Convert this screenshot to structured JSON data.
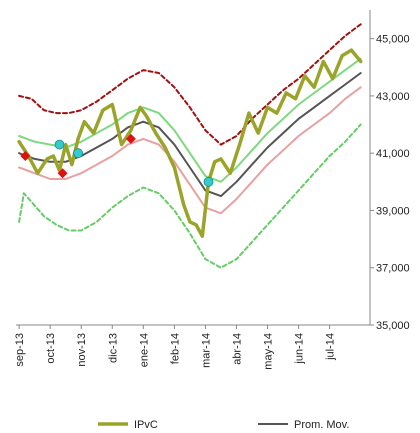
{
  "chart_data": {
    "type": "line",
    "title": "",
    "xlabel": "",
    "ylabel": "",
    "ylim": [
      35000,
      46000
    ],
    "y_ticks": [
      35000,
      37000,
      39000,
      41000,
      43000,
      45000
    ],
    "y_tick_labels": [
      "35,000",
      "37,000",
      "39,000",
      "41,000",
      "43,000",
      "45,000"
    ],
    "y_axis_side": "right",
    "grid": false,
    "legend_position": "bottom",
    "x_tick_labels": [
      "sep-13",
      "oct-13",
      "nov-13",
      "dic-13",
      "ene-14",
      "feb-14",
      "mar-14",
      "abr-14",
      "may-14",
      "jun-14",
      "jul-14"
    ],
    "x_tick_months": [
      0,
      1,
      2,
      3,
      4,
      5,
      6,
      7,
      8,
      9,
      10
    ],
    "x_range_months": [
      -0.1,
      11.3
    ],
    "series": [
      {
        "name": "IPvC",
        "legend": true,
        "color": "#9aa42a",
        "style": "solid-thick",
        "x": [
          0,
          0.3,
          0.6,
          0.9,
          1.1,
          1.3,
          1.5,
          1.7,
          1.9,
          2.1,
          2.4,
          2.7,
          3.0,
          3.3,
          3.6,
          3.9,
          4.1,
          4.4,
          4.7,
          5.0,
          5.3,
          5.5,
          5.7,
          5.9,
          6.1,
          6.3,
          6.5,
          6.8,
          7.1,
          7.4,
          7.7,
          8.0,
          8.3,
          8.6,
          8.9,
          9.2,
          9.5,
          9.8,
          10.1,
          10.4,
          10.7,
          11.0
        ],
        "values": [
          41400,
          40900,
          40300,
          40800,
          40900,
          40400,
          41300,
          40600,
          41500,
          42100,
          41700,
          42500,
          42700,
          41300,
          41800,
          42600,
          42300,
          41700,
          41200,
          40500,
          39200,
          38600,
          38500,
          38100,
          40000,
          40700,
          40800,
          40300,
          41300,
          42400,
          41700,
          42600,
          42400,
          43100,
          42900,
          43700,
          43300,
          44200,
          43600,
          44400,
          44600,
          44200
        ]
      },
      {
        "name": "Prom. Mov.",
        "legend": true,
        "color": "#555555",
        "style": "solid",
        "x": [
          0,
          0.5,
          1.0,
          1.5,
          2.0,
          2.5,
          3.0,
          3.5,
          4.0,
          4.5,
          5.0,
          5.5,
          6.0,
          6.5,
          7.0,
          7.5,
          8.0,
          8.5,
          9.0,
          9.5,
          10.0,
          10.5,
          11.0
        ],
        "values": [
          41000,
          40800,
          40700,
          40700,
          40900,
          41200,
          41500,
          41900,
          42100,
          41900,
          41300,
          40500,
          39700,
          39500,
          40000,
          40600,
          41200,
          41700,
          42200,
          42600,
          43000,
          43400,
          43800
        ]
      },
      {
        "legend": false,
        "color": "#7fd97f",
        "style": "solid",
        "x": [
          0,
          0.5,
          1.0,
          1.5,
          2.0,
          2.5,
          3.0,
          3.5,
          4.0,
          4.5,
          5.0,
          5.5,
          6.0,
          6.5,
          7.0,
          7.5,
          8.0,
          8.5,
          9.0,
          9.5,
          10.0,
          10.5,
          11.0
        ],
        "values": [
          41600,
          41400,
          41300,
          41200,
          41400,
          41700,
          42000,
          42400,
          42600,
          42400,
          41800,
          41000,
          40200,
          40000,
          40500,
          41100,
          41700,
          42200,
          42700,
          43100,
          43500,
          43900,
          44300
        ]
      },
      {
        "legend": false,
        "color": "#e8a0a0",
        "style": "solid",
        "x": [
          0,
          0.5,
          1.0,
          1.5,
          2.0,
          2.5,
          3.0,
          3.5,
          4.0,
          4.5,
          5.0,
          5.5,
          6.0,
          6.5,
          7.0,
          7.5,
          8.0,
          8.5,
          9.0,
          9.5,
          10.0,
          10.5,
          11.0
        ],
        "values": [
          40500,
          40300,
          40100,
          40100,
          40300,
          40600,
          40900,
          41300,
          41500,
          41300,
          40700,
          39900,
          39100,
          38900,
          39400,
          40000,
          40600,
          41100,
          41600,
          42000,
          42400,
          42900,
          43300
        ]
      },
      {
        "legend": false,
        "color": "#a01010",
        "style": "dashed",
        "x": [
          0,
          0.4,
          0.8,
          1.2,
          1.6,
          2.0,
          2.5,
          3.0,
          3.5,
          4.0,
          4.5,
          5.0,
          5.5,
          6.0,
          6.5,
          7.0,
          7.5,
          8.0,
          8.5,
          9.0,
          9.5,
          10.0,
          10.5,
          11.0
        ],
        "values": [
          43000,
          42900,
          42500,
          42400,
          42400,
          42500,
          42800,
          43200,
          43600,
          43900,
          43800,
          43300,
          42600,
          41800,
          41300,
          41600,
          42200,
          42700,
          43200,
          43600,
          44100,
          44600,
          45100,
          45500
        ]
      },
      {
        "legend": false,
        "color": "#66cc66",
        "style": "dashed",
        "x": [
          0,
          0.15,
          0.4,
          0.8,
          1.2,
          1.6,
          2.0,
          2.5,
          3.0,
          3.5,
          4.0,
          4.5,
          5.0,
          5.5,
          6.0,
          6.5,
          7.0,
          7.5,
          8.0,
          8.5,
          9.0,
          9.5,
          10.0,
          10.5,
          11.0
        ],
        "values": [
          38600,
          39600,
          39300,
          38800,
          38500,
          38300,
          38300,
          38600,
          39100,
          39500,
          39800,
          39600,
          39000,
          38200,
          37300,
          37000,
          37300,
          37900,
          38500,
          39100,
          39700,
          40300,
          40900,
          41400,
          42000
        ]
      }
    ],
    "markers": [
      {
        "x": 0.2,
        "y": 40900,
        "shape": "diamond",
        "color": "#dd1111"
      },
      {
        "x": 1.4,
        "y": 40300,
        "shape": "diamond",
        "color": "#dd1111"
      },
      {
        "x": 3.6,
        "y": 41500,
        "shape": "diamond",
        "color": "#dd1111"
      },
      {
        "x": 1.3,
        "y": 41300,
        "shape": "circle",
        "color": "#33cccc"
      },
      {
        "x": 1.9,
        "y": 41000,
        "shape": "circle",
        "color": "#33cccc"
      },
      {
        "x": 6.1,
        "y": 40000,
        "shape": "circle",
        "color": "#33cccc"
      }
    ]
  }
}
